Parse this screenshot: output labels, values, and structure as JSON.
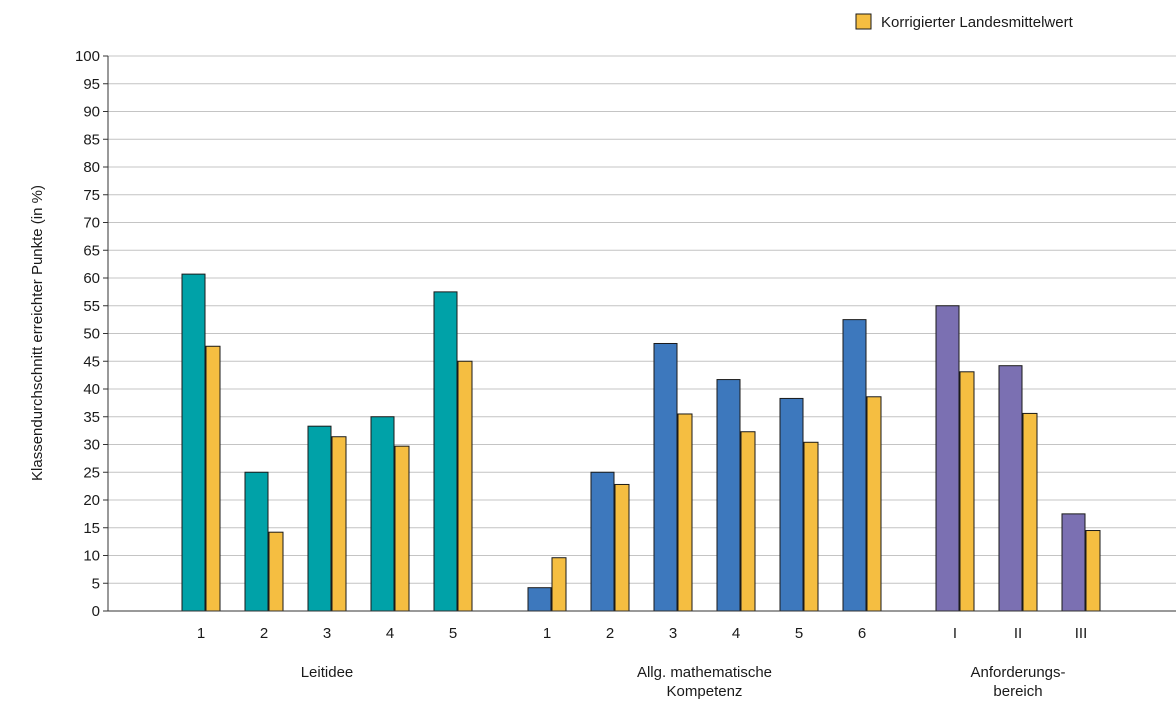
{
  "chart_data": {
    "type": "bar",
    "ylabel": "Klassendurchschnitt erreichter Punkte (in %)",
    "ylim": [
      0,
      100
    ],
    "ytick_step": 5,
    "grid": true,
    "legend": {
      "placement": "top-right",
      "entries": [
        {
          "label": "Korrigierter Landesmittelwert",
          "color": "#f5be41"
        }
      ]
    },
    "groups": [
      {
        "label_lines": [
          "Leitidee"
        ],
        "class_color": "#00a2a8",
        "categories": [
          "1",
          "2",
          "3",
          "4",
          "5"
        ],
        "class_values": [
          60.7,
          25.0,
          33.3,
          35.0,
          57.5
        ],
        "landes_values": [
          47.7,
          14.2,
          31.4,
          29.7,
          45.0
        ]
      },
      {
        "label_lines": [
          "Allg. mathematische",
          "Kompetenz"
        ],
        "class_color": "#3d78bd",
        "categories": [
          "1",
          "2",
          "3",
          "4",
          "5",
          "6"
        ],
        "class_values": [
          4.2,
          25.0,
          48.2,
          41.7,
          38.3,
          52.5
        ],
        "landes_values": [
          9.6,
          22.8,
          35.5,
          32.3,
          30.4,
          38.6
        ]
      },
      {
        "label_lines": [
          "Anforderungs-",
          "bereich"
        ],
        "class_color": "#7b70b2",
        "categories": [
          "I",
          "II",
          "III"
        ],
        "class_values": [
          55.0,
          44.2,
          17.5
        ],
        "landes_values": [
          43.1,
          35.6,
          14.5
        ]
      }
    ]
  }
}
